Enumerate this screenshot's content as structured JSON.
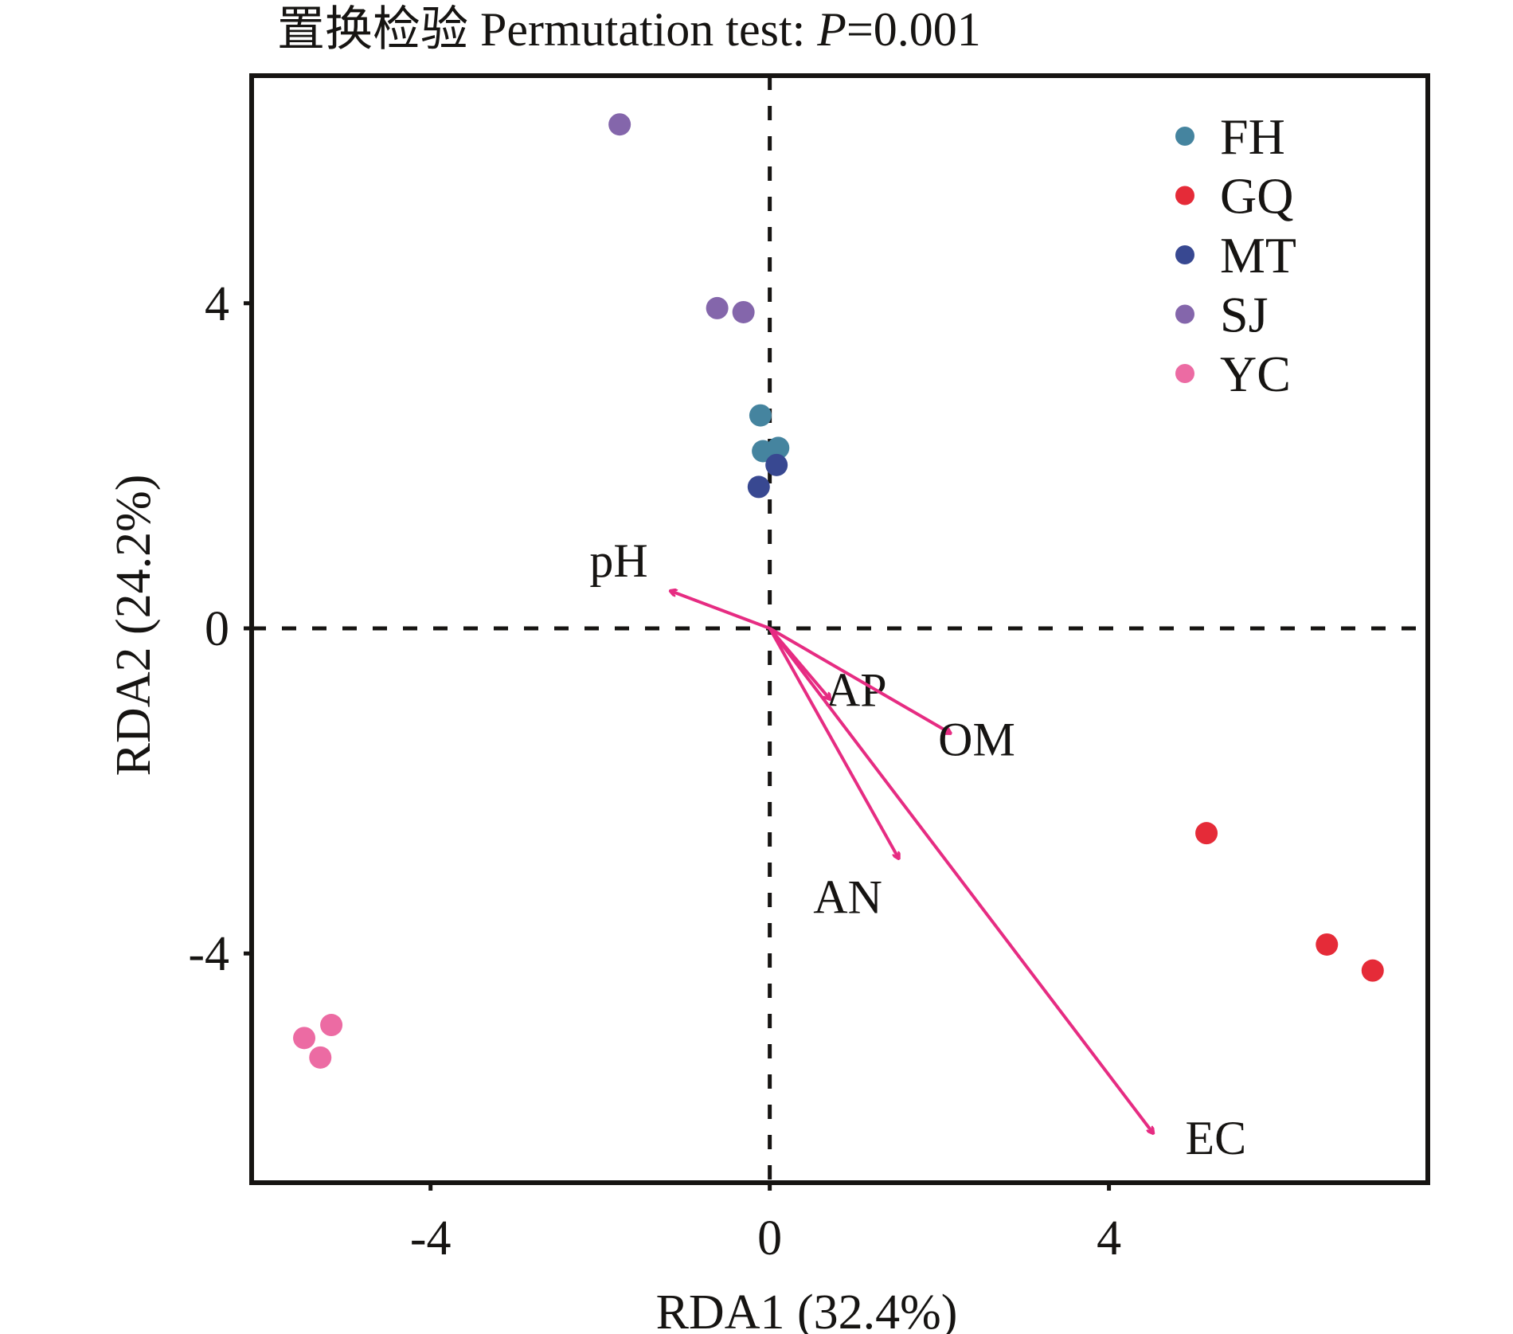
{
  "chart_data": {
    "type": "scatter",
    "subtype": "RDA biplot",
    "title": {
      "prefix": "置换检验 Permutation test: ",
      "p_symbol": "P",
      "p_value": "=0.001"
    },
    "xlabel": "RDA1 (32.4%)",
    "ylabel": "RDA2 (24.2%)",
    "xlim": [
      -6.11,
      7.76
    ],
    "ylim": [
      -6.82,
      6.8
    ],
    "x_ticks": [
      {
        "value": -4,
        "label": "-4"
      },
      {
        "value": 0,
        "label": "0"
      },
      {
        "value": 4,
        "label": "4"
      }
    ],
    "y_ticks": [
      {
        "value": 4,
        "label": "4"
      },
      {
        "value": 0,
        "label": "0"
      },
      {
        "value": -4,
        "label": "-4"
      }
    ],
    "reference_lines": {
      "x": 0,
      "y": 0,
      "style": "dashed"
    },
    "grid": false,
    "legend_position": "top-right",
    "series": [
      {
        "name": "FH",
        "color": "#45849f",
        "points": [
          [
            -0.11,
            2.62
          ],
          [
            -0.08,
            2.18
          ],
          [
            0.1,
            2.22
          ]
        ]
      },
      {
        "name": "GQ",
        "color": "#e52b38",
        "points": [
          [
            5.15,
            -2.52
          ],
          [
            6.57,
            -3.89
          ],
          [
            7.11,
            -4.21
          ]
        ]
      },
      {
        "name": "MT",
        "color": "#384891",
        "points": [
          [
            0.08,
            2.01
          ],
          [
            -0.13,
            1.74
          ]
        ]
      },
      {
        "name": "SJ",
        "color": "#8466ab",
        "points": [
          [
            -1.77,
            6.2
          ],
          [
            -0.62,
            3.94
          ],
          [
            -0.31,
            3.89
          ]
        ]
      },
      {
        "name": "YC",
        "color": "#ec6ba3",
        "points": [
          [
            -5.17,
            -4.88
          ],
          [
            -5.49,
            -5.04
          ],
          [
            -5.3,
            -5.28
          ]
        ]
      }
    ],
    "arrows": {
      "color": "#e62c82",
      "items": [
        {
          "label": "pH",
          "x": -1.17,
          "y": 0.46,
          "label_x": -1.78,
          "label_y": 0.77
        },
        {
          "label": "AP",
          "x": 0.71,
          "y": -0.87,
          "label_x": 1.02,
          "label_y": -0.82
        },
        {
          "label": "OM",
          "x": 2.13,
          "y": -1.29,
          "label_x": 2.44,
          "label_y": -1.43
        },
        {
          "label": "AN",
          "x": 1.52,
          "y": -2.83,
          "label_x": 0.92,
          "label_y": -3.37
        },
        {
          "label": "EC",
          "x": 4.52,
          "y": -6.21,
          "label_x": 5.26,
          "label_y": -6.33
        }
      ]
    }
  }
}
